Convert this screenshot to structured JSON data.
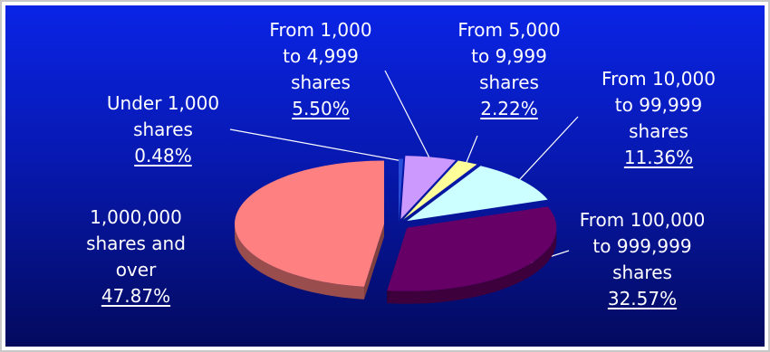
{
  "chart_data": {
    "type": "pie",
    "title": "",
    "categories": [
      "Under 1,000 shares",
      "From 1,000 to 4,999 shares",
      "From 5,000 to 9,999 shares",
      "From 10,000 to 99,999 shares",
      "From 100,000 to 999,999 shares",
      "1,000,000 shares and over"
    ],
    "values": [
      0.48,
      5.5,
      2.22,
      11.36,
      32.57,
      47.87
    ],
    "value_labels": [
      "0.48%",
      "5.50%",
      "2.22%",
      "11.36%",
      "32.57%",
      "47.87%"
    ],
    "label_lines": [
      [
        "Under 1,000",
        "shares"
      ],
      [
        "From 1,000",
        "to 4,999",
        "shares"
      ],
      [
        "From 5,000",
        "to 9,999",
        "shares"
      ],
      [
        "From 10,000",
        "to 99,999",
        "shares"
      ],
      [
        "From 100,000",
        "to 999,999",
        "shares"
      ],
      [
        "1,000,000",
        "shares and",
        "over"
      ]
    ],
    "colors": [
      "#2b4fd8",
      "#cc99ff",
      "#ffff99",
      "#ccffff",
      "#660066",
      "#ff8080"
    ],
    "style": "3d-exploded",
    "legend": "none"
  }
}
